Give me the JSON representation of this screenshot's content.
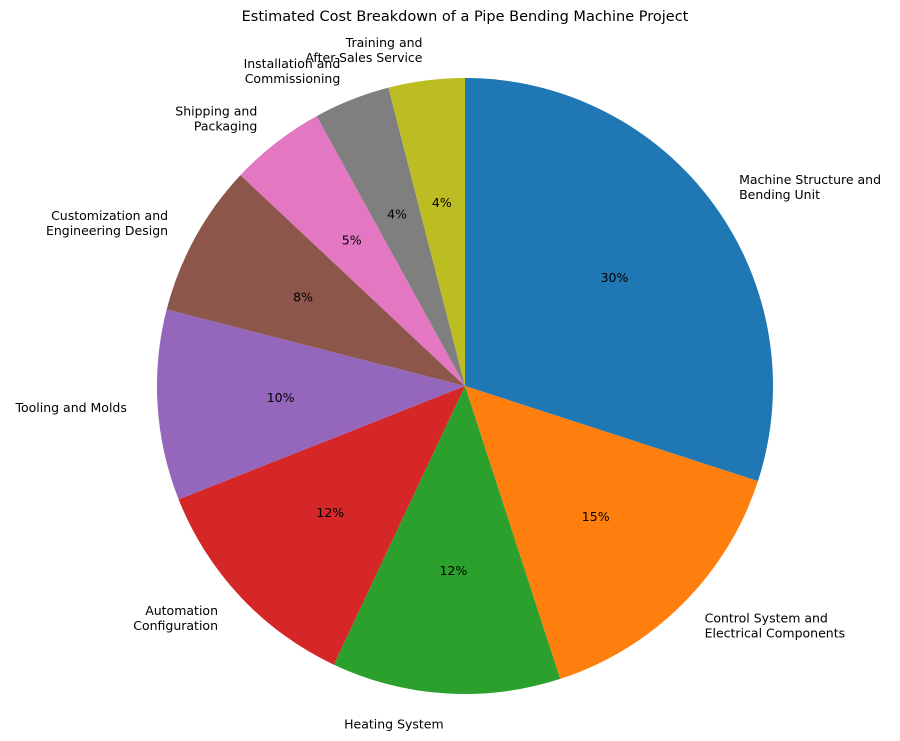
{
  "chart_data": {
    "type": "pie",
    "title": "Estimated Cost Breakdown of a Pipe Bending Machine Project",
    "start_angle_deg": 90,
    "direction": "clockwise",
    "slices": [
      {
        "label": "Machine Structure and\nBending Unit",
        "value": 30,
        "pct_label": "30%",
        "color": "#1f77b4"
      },
      {
        "label": "Control System and\nElectrical Components",
        "value": 15,
        "pct_label": "15%",
        "color": "#ff7f0e"
      },
      {
        "label": "Heating System",
        "value": 12,
        "pct_label": "12%",
        "color": "#2ca02c"
      },
      {
        "label": "Automation\nConfiguration",
        "value": 12,
        "pct_label": "12%",
        "color": "#d62728"
      },
      {
        "label": "Tooling and Molds",
        "value": 10,
        "pct_label": "10%",
        "color": "#9467bd"
      },
      {
        "label": "Customization and\nEngineering Design",
        "value": 8,
        "pct_label": "8%",
        "color": "#8c564b"
      },
      {
        "label": "Shipping and\nPackaging",
        "value": 5,
        "pct_label": "5%",
        "color": "#e377c2"
      },
      {
        "label": "Installation and\nCommissioning",
        "value": 4,
        "pct_label": "4%",
        "color": "#7f7f7f"
      },
      {
        "label": "Training and\nAfter-Sales Service",
        "value": 4,
        "pct_label": "4%",
        "color": "#bcbd22"
      }
    ]
  }
}
